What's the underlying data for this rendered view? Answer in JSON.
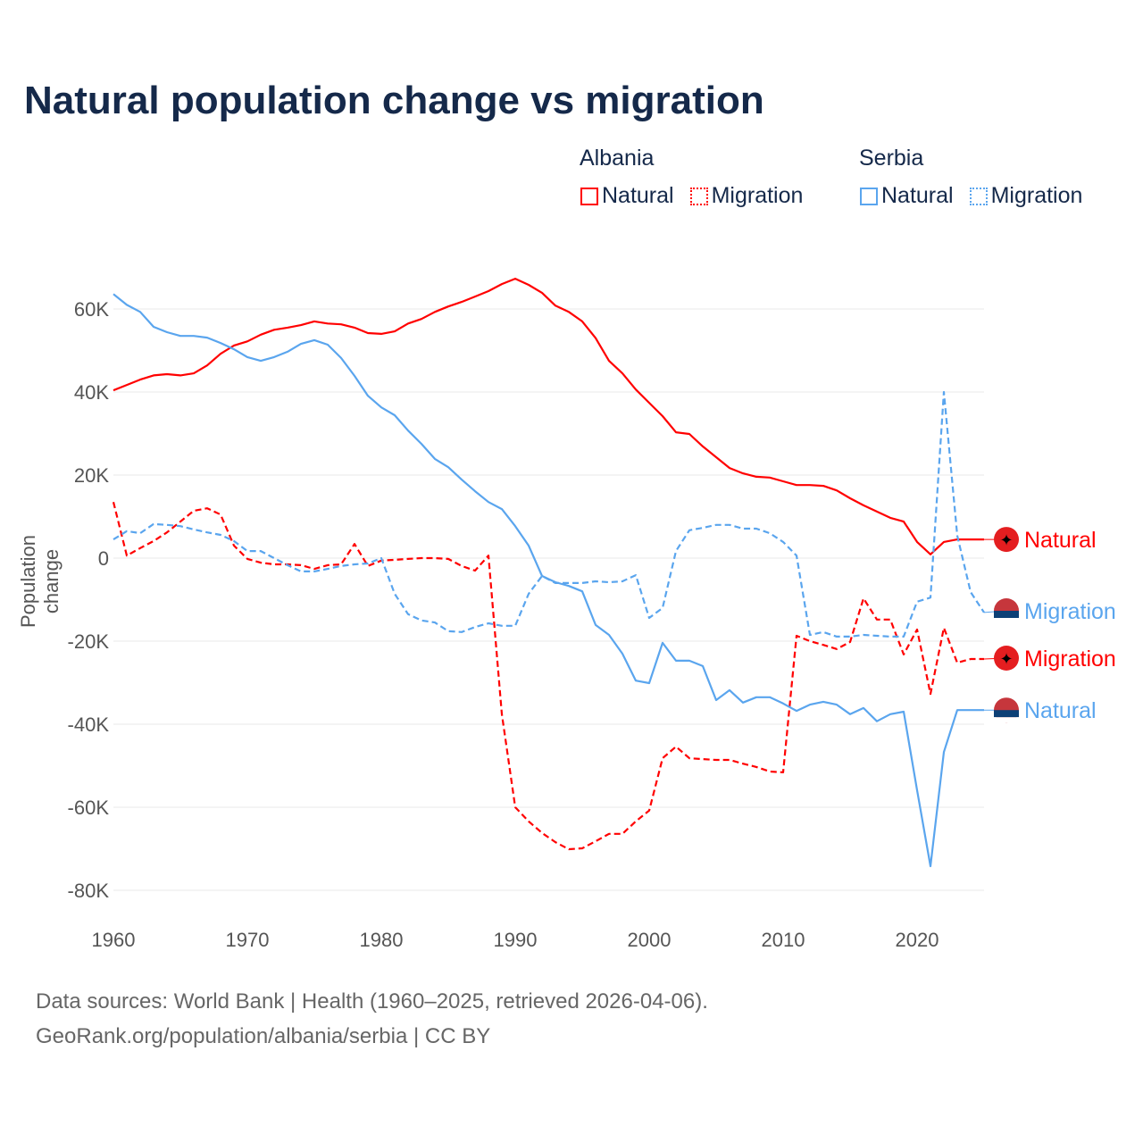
{
  "title": "Natural population change vs migration",
  "legend": {
    "groups": [
      {
        "name": "Albania",
        "items": [
          "Natural",
          "Migration"
        ]
      },
      {
        "name": "Serbia",
        "items": [
          "Natural",
          "Migration"
        ]
      }
    ]
  },
  "colors": {
    "albania": "#ff0000",
    "serbia": "#5aa5ee"
  },
  "footer": {
    "line1": "Data sources: World Bank | Health (1960–2025, retrieved 2026-04-06).",
    "line2": "GeoRank.org/population/albania/serbia | CC BY"
  },
  "chart_data": {
    "type": "line",
    "title": "Natural population change vs migration",
    "xlabel": "",
    "ylabel": "Population change",
    "xlim": [
      1960,
      2025
    ],
    "ylim": [
      -80000,
      70000
    ],
    "x_ticks": [
      1960,
      1970,
      1980,
      1990,
      2000,
      2010,
      2020
    ],
    "y_ticks": [
      {
        "v": 60000,
        "label": "60K"
      },
      {
        "v": 40000,
        "label": "40K"
      },
      {
        "v": 20000,
        "label": "20K"
      },
      {
        "v": 0,
        "label": "0"
      },
      {
        "v": -20000,
        "label": "-20K"
      },
      {
        "v": -40000,
        "label": "-40K"
      },
      {
        "v": -60000,
        "label": "-60K"
      },
      {
        "v": -80000,
        "label": "-80K"
      }
    ],
    "x_start": 1960,
    "series": [
      {
        "name": "Albania Natural",
        "country": "Albania",
        "kind": "Natural",
        "end_label": "Natural",
        "dashed": false,
        "values_k": [
          40.4,
          41.7,
          43,
          44,
          44.3,
          44,
          44.5,
          46.4,
          49.2,
          51.2,
          52.2,
          53.8,
          55,
          55.5,
          56.1,
          57,
          56.5,
          56.3,
          55.5,
          54.2,
          54,
          54.6,
          56.5,
          57.6,
          59.3,
          60.6,
          61.7,
          63,
          64.3,
          66,
          67.3,
          65.8,
          63.9,
          60.8,
          59.3,
          57,
          53,
          47.5,
          44.5,
          40.6,
          37.4,
          34.2,
          30.3,
          29.9,
          26.9,
          24.3,
          21.7,
          20.4,
          19.6,
          19.4,
          18.5,
          17.6,
          17.6,
          17.4,
          16.3,
          14.4,
          12.7,
          11.2,
          9.7,
          8.8,
          3.9,
          0.9,
          3.9,
          4.5,
          4.5,
          4.5
        ]
      },
      {
        "name": "Albania Migration",
        "country": "Albania",
        "kind": "Migration",
        "end_label": "Migration",
        "dashed": true,
        "values_k": [
          13.5,
          0.6,
          2.4,
          4.1,
          6.2,
          8.8,
          11.4,
          12,
          10.5,
          3,
          -0.2,
          -1.1,
          -1.5,
          -1.5,
          -1.7,
          -2.6,
          -1.7,
          -1.5,
          3.4,
          -1.9,
          -0.6,
          -0.4,
          -0.2,
          0,
          0,
          -0.2,
          -1.9,
          -3,
          0.6,
          -37.6,
          -60,
          -63.4,
          -66.2,
          -68.4,
          -70.1,
          -69.9,
          -68.2,
          -66.4,
          -66.4,
          -63.4,
          -60.8,
          -48.2,
          -45.4,
          -48.2,
          -48.4,
          -48.6,
          -48.6,
          -49.5,
          -50.3,
          -51.4,
          -51.6,
          -18.7,
          -20,
          -20.9,
          -21.9,
          -20.2,
          -9.7,
          -14.8,
          -14.8,
          -23.2,
          -17.2,
          -32.7,
          -16.8,
          -25.2,
          -24.3,
          -24.3
        ]
      },
      {
        "name": "Serbia Natural",
        "country": "Serbia",
        "kind": "Natural",
        "end_label": "Natural",
        "dashed": false,
        "values_k": [
          63.6,
          61,
          59.3,
          55.7,
          54.4,
          53.5,
          53.5,
          53.1,
          51.8,
          50.3,
          48.4,
          47.5,
          48.4,
          49.7,
          51.6,
          52.5,
          51.4,
          48.2,
          43.9,
          39.1,
          36.3,
          34.4,
          30.7,
          27.5,
          23.9,
          21.9,
          18.9,
          16.1,
          13.5,
          11.8,
          7.7,
          3,
          -4.3,
          -5.8,
          -6.7,
          -8,
          -16.1,
          -18.5,
          -23,
          -29.5,
          -30.1,
          -20.4,
          -24.7,
          -24.7,
          -26,
          -34.2,
          -31.8,
          -34.8,
          -33.5,
          -33.5,
          -35,
          -36.8,
          -35.3,
          -34.6,
          -35.3,
          -37.6,
          -36.1,
          -39.3,
          -37.6,
          -37,
          -55.9,
          -74.2,
          -46.7,
          -36.6,
          -36.6,
          -36.6
        ]
      },
      {
        "name": "Serbia Migration",
        "country": "Serbia",
        "kind": "Migration",
        "end_label": "Migration",
        "dashed": true,
        "values_k": [
          4.5,
          6.5,
          6,
          8.2,
          8,
          7.7,
          6.9,
          6.2,
          5.6,
          4.1,
          1.7,
          1.7,
          0,
          -1.7,
          -3.2,
          -3.2,
          -2.6,
          -1.9,
          -1.5,
          -1.3,
          0,
          -8.6,
          -13.5,
          -15,
          -15.5,
          -17.6,
          -17.8,
          -16.6,
          -15.7,
          -16.3,
          -16.3,
          -8.6,
          -4.3,
          -6,
          -6,
          -6,
          -5.6,
          -5.8,
          -5.6,
          -4.1,
          -14.4,
          -12,
          1.7,
          6.7,
          7.3,
          8,
          8,
          7.1,
          7.1,
          6,
          3.9,
          0.6,
          -18.5,
          -17.8,
          -18.9,
          -18.9,
          -18.5,
          -18.7,
          -18.9,
          -18.9,
          -10.5,
          -9.5,
          40,
          5.4,
          -8.2,
          -13.1
        ]
      }
    ]
  }
}
